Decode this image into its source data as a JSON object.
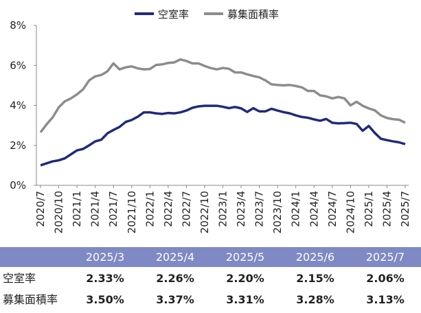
{
  "chart_data": {
    "type": "line",
    "legend": "top",
    "categories": [
      "2020/7",
      null,
      null,
      "2020/10",
      null,
      null,
      "2021/1",
      null,
      null,
      "2021/4",
      null,
      null,
      "2021/7",
      null,
      null,
      "2021/10",
      null,
      null,
      "2022/1",
      null,
      null,
      "2022/4",
      null,
      null,
      "2022/7",
      null,
      null,
      "2022/10",
      null,
      null,
      "2023/1",
      null,
      null,
      "2023/4",
      null,
      null,
      "2023/7",
      null,
      null,
      "2023/10",
      null,
      null,
      "2024/1",
      null,
      null,
      "2024/4",
      null,
      null,
      "2024/7",
      null,
      null,
      "2024/10",
      null,
      null,
      "2025/1",
      null,
      null,
      "2025/4",
      null,
      null,
      "2025/7"
    ],
    "series": [
      {
        "name": "空室率",
        "color": "#1f2a7c",
        "values": [
          1.0,
          1.1,
          1.2,
          1.25,
          1.35,
          1.55,
          1.75,
          1.82,
          2.0,
          2.2,
          2.28,
          2.6,
          2.77,
          2.92,
          3.17,
          3.27,
          3.43,
          3.65,
          3.65,
          3.6,
          3.57,
          3.62,
          3.6,
          3.65,
          3.74,
          3.88,
          3.95,
          3.98,
          3.98,
          3.98,
          3.93,
          3.86,
          3.92,
          3.85,
          3.67,
          3.86,
          3.7,
          3.7,
          3.83,
          3.74,
          3.66,
          3.6,
          3.5,
          3.42,
          3.38,
          3.3,
          3.23,
          3.32,
          3.13,
          3.1,
          3.11,
          3.13,
          3.07,
          2.73,
          2.97,
          2.62,
          2.33,
          2.26,
          2.2,
          2.15,
          2.06
        ]
      },
      {
        "name": "募集面積率",
        "color": "#8c8c8c",
        "values": [
          2.65,
          3.05,
          3.4,
          3.9,
          4.2,
          4.35,
          4.55,
          4.8,
          5.25,
          5.45,
          5.52,
          5.7,
          6.1,
          5.8,
          5.9,
          5.95,
          5.85,
          5.8,
          5.82,
          6.02,
          6.05,
          6.12,
          6.15,
          6.3,
          6.22,
          6.1,
          6.1,
          5.97,
          5.87,
          5.8,
          5.87,
          5.83,
          5.65,
          5.65,
          5.55,
          5.47,
          5.4,
          5.25,
          5.05,
          5.02,
          5.0,
          5.02,
          4.97,
          4.9,
          4.72,
          4.72,
          4.5,
          4.45,
          4.35,
          4.42,
          4.35,
          4.0,
          4.18,
          3.98,
          3.85,
          3.75,
          3.5,
          3.37,
          3.31,
          3.28,
          3.13
        ]
      }
    ],
    "ylim": [
      0,
      8
    ],
    "yticks": [
      {
        "value": 0,
        "label": "0%"
      },
      {
        "value": 2,
        "label": "2%"
      },
      {
        "value": 4,
        "label": "4%"
      },
      {
        "value": 6,
        "label": "6%"
      },
      {
        "value": 8,
        "label": "8%"
      }
    ]
  },
  "table": {
    "header": [
      "2025/3",
      "2025/4",
      "2025/5",
      "2025/6",
      "2025/7"
    ],
    "rows": [
      [
        "空室率",
        "2.33%",
        "2.26%",
        "2.20%",
        "2.15%",
        "2.06%"
      ],
      [
        "募集面積率",
        "3.50%",
        "3.37%",
        "3.31%",
        "3.28%",
        "3.13%"
      ]
    ]
  }
}
